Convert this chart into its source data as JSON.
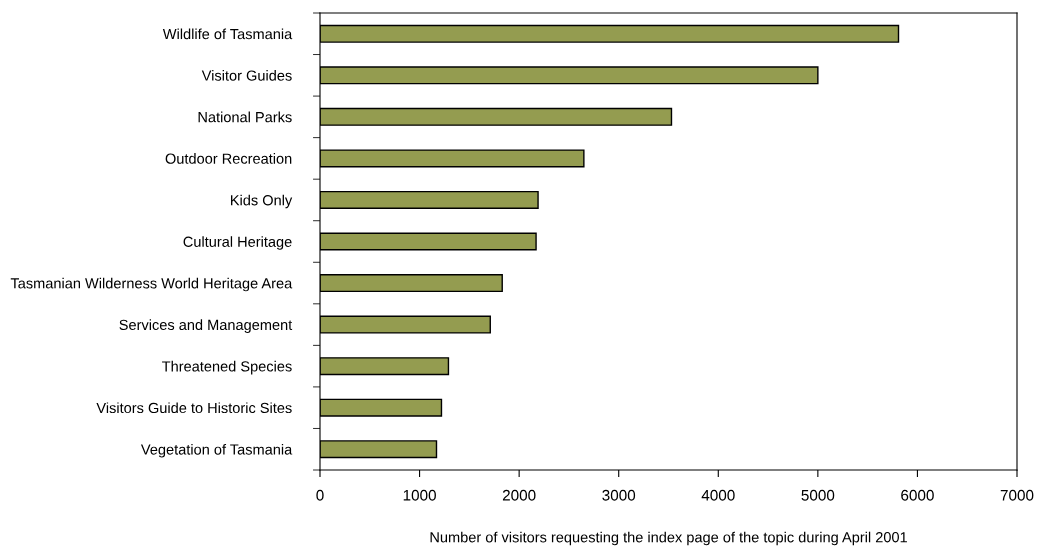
{
  "chart_data": {
    "type": "bar",
    "orientation": "horizontal",
    "categories": [
      "Wildlife of Tasmania",
      "Visitor Guides",
      "National Parks",
      "Outdoor Recreation",
      "Kids Only",
      "Cultural Heritage",
      "Tasmanian Wilderness World Heritage Area",
      "Services and Management",
      "Threatened Species",
      "Visitors Guide to Historic Sites",
      "Vegetation of Tasmania"
    ],
    "values": [
      5810,
      5000,
      3530,
      2650,
      2190,
      2170,
      1830,
      1710,
      1290,
      1220,
      1170
    ],
    "color": "#949c50",
    "xlim": [
      0,
      7000
    ],
    "xticks": [
      0,
      1000,
      2000,
      3000,
      4000,
      5000,
      6000,
      7000
    ],
    "xlabel": "Number of visitors requesting the index page of the topic during April 2001",
    "grid": false
  }
}
